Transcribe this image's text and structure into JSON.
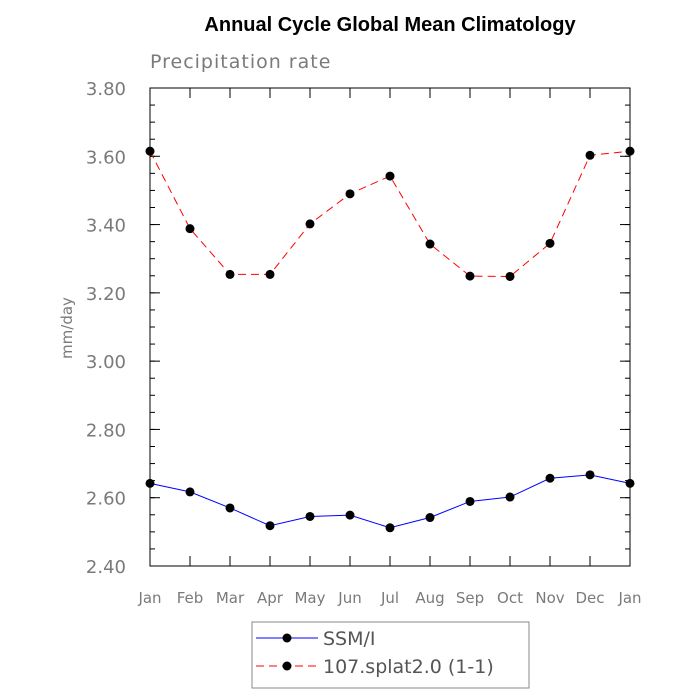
{
  "chart_data": {
    "type": "line",
    "title": "Annual Cycle Global Mean Climatology",
    "subtitle": "Precipitation rate",
    "xlabel": "",
    "ylabel": "mm/day",
    "categories": [
      "Jan",
      "Feb",
      "Mar",
      "Apr",
      "May",
      "Jun",
      "Jul",
      "Aug",
      "Sep",
      "Oct",
      "Nov",
      "Dec",
      "Jan"
    ],
    "ylim": [
      2.4,
      3.8
    ],
    "yticks": [
      "2.40",
      "2.60",
      "2.80",
      "3.00",
      "3.20",
      "3.40",
      "3.60",
      "3.80"
    ],
    "grid": false,
    "legend_position": "bottom",
    "series": [
      {
        "name": "SSM/I",
        "color": "#0000ff",
        "style": "solid",
        "values": [
          2.642,
          2.617,
          2.57,
          2.518,
          2.545,
          2.549,
          2.512,
          2.542,
          2.589,
          2.602,
          2.657,
          2.667,
          2.642
        ]
      },
      {
        "name": "107.splat2.0 (1-1)",
        "color": "#ff0000",
        "style": "dashed",
        "values": [
          3.615,
          3.388,
          3.254,
          3.254,
          3.402,
          3.49,
          3.542,
          3.343,
          3.249,
          3.248,
          3.345,
          3.603,
          3.615
        ]
      }
    ]
  }
}
